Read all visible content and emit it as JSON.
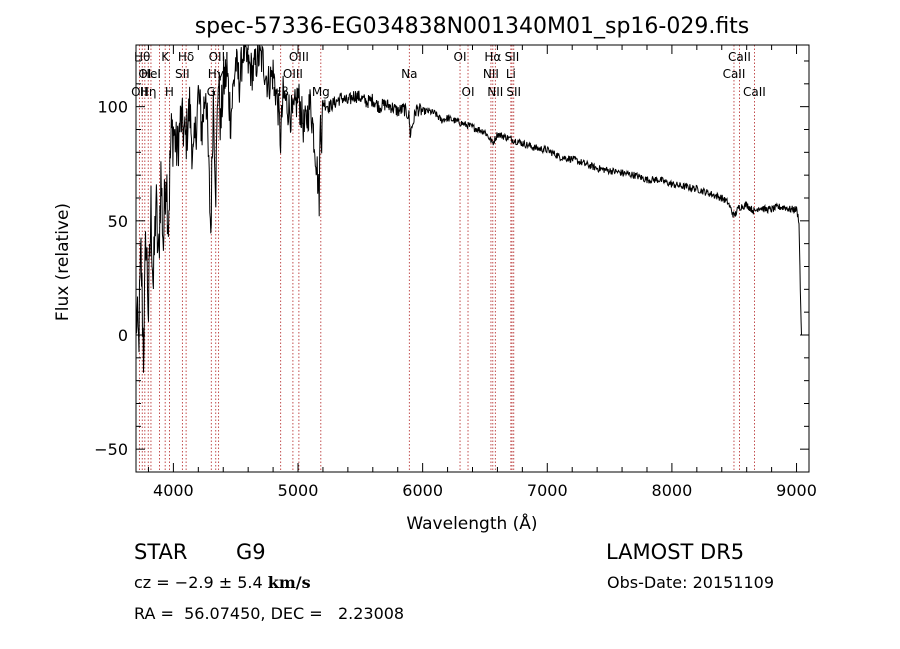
{
  "chart_data": {
    "type": "line",
    "title": "spec-57336-EG034838N001340M01_sp16-029.fits",
    "xlabel": "Wavelength (Å)",
    "ylabel": "Flux (relative)",
    "xlim": [
      3700,
      9100
    ],
    "ylim": [
      -60,
      127
    ],
    "xticks": [
      4000,
      5000,
      6000,
      7000,
      8000,
      9000
    ],
    "yticks": [
      -50,
      0,
      50,
      100
    ],
    "grid": false,
    "series": [
      {
        "x": [
          3700,
          3720,
          3740,
          3760,
          3780,
          3800,
          3820,
          3840,
          3860,
          3880,
          3900,
          3920,
          3940,
          3960,
          3980,
          4000,
          4030,
          4060,
          4100,
          4130,
          4160,
          4200,
          4230,
          4260,
          4300,
          4320,
          4340,
          4360,
          4380,
          4400,
          4430,
          4460,
          4500,
          4530,
          4560,
          4600,
          4640,
          4680,
          4720,
          4760,
          4800,
          4840,
          4860,
          4880,
          4920,
          4960,
          5000,
          5050,
          5100,
          5150,
          5170,
          5180,
          5190,
          5200,
          5250,
          5300,
          5350,
          5400,
          5450,
          5500,
          5550,
          5600,
          5650,
          5700,
          5750,
          5800,
          5850,
          5890,
          5900,
          5950,
          6000,
          6050,
          6100,
          6150,
          6200,
          6250,
          6300,
          6350,
          6400,
          6450,
          6500,
          6563,
          6600,
          6700,
          6800,
          6900,
          7000,
          7100,
          7200,
          7300,
          7400,
          7500,
          7600,
          7700,
          7800,
          7900,
          8000,
          8100,
          8200,
          8300,
          8400,
          8450,
          8498,
          8540,
          8600,
          8662,
          8700,
          8750,
          8800,
          8850,
          8900,
          8950,
          9000,
          9020,
          9030,
          9040
        ],
        "values": [
          10,
          -5,
          35,
          -8,
          45,
          10,
          55,
          20,
          60,
          30,
          70,
          40,
          75,
          50,
          85,
          90,
          80,
          95,
          85,
          100,
          75,
          105,
          90,
          110,
          45,
          105,
          65,
          115,
          90,
          110,
          115,
          95,
          120,
          110,
          125,
          118,
          115,
          122,
          120,
          110,
          115,
          100,
          85,
          105,
          100,
          95,
          105,
          90,
          102,
          75,
          60,
          98,
          85,
          102,
          100,
          102,
          104,
          102,
          105,
          104,
          102,
          103,
          100,
          101,
          100,
          98,
          99,
          96,
          88,
          99,
          98,
          98,
          97,
          94,
          95,
          94,
          93,
          92,
          91,
          90,
          89,
          84,
          88,
          86,
          84,
          82,
          81,
          78,
          77,
          75,
          73,
          72,
          71,
          70,
          68,
          68,
          66,
          65,
          64,
          62,
          60,
          58,
          52,
          56,
          57,
          54,
          56,
          55,
          55,
          56,
          56,
          55,
          55,
          50,
          20,
          0
        ],
        "color": "#000000"
      }
    ],
    "lines": [
      {
        "wavelength": 3727,
        "label": "OII",
        "row": 3
      },
      {
        "wavelength": 3750,
        "label": "Hθ",
        "row": 1
      },
      {
        "wavelength": 3771,
        "label": "OI",
        "row": 2
      },
      {
        "wavelength": 3798,
        "label": "Hη",
        "row": 3
      },
      {
        "wavelength": 3820,
        "label": "HeI",
        "row": 2
      },
      {
        "wavelength": 3889,
        "label": "",
        "row": 0
      },
      {
        "wavelength": 3934,
        "label": "K",
        "row": 1
      },
      {
        "wavelength": 3968,
        "label": "H",
        "row": 3
      },
      {
        "wavelength": 4072,
        "label": "SII",
        "row": 2
      },
      {
        "wavelength": 4102,
        "label": "Hδ",
        "row": 1
      },
      {
        "wavelength": 4304,
        "label": "G",
        "row": 3
      },
      {
        "wavelength": 4340,
        "label": "Hγ",
        "row": 2
      },
      {
        "wavelength": 4363,
        "label": "OIII",
        "row": 1
      },
      {
        "wavelength": 4861,
        "label": "Hβ",
        "row": 3
      },
      {
        "wavelength": 4959,
        "label": "OIII",
        "row": 2
      },
      {
        "wavelength": 5007,
        "label": "OIII",
        "row": 1
      },
      {
        "wavelength": 5183,
        "label": "Mg",
        "row": 3
      },
      {
        "wavelength": 5893,
        "label": "Na",
        "row": 2
      },
      {
        "wavelength": 6300,
        "label": "OI",
        "row": 1
      },
      {
        "wavelength": 6364,
        "label": "OI",
        "row": 3
      },
      {
        "wavelength": 6548,
        "label": "NII",
        "row": 2
      },
      {
        "wavelength": 6563,
        "label": "Hα",
        "row": 1
      },
      {
        "wavelength": 6583,
        "label": "NII",
        "row": 3
      },
      {
        "wavelength": 6708,
        "label": "Li",
        "row": 2
      },
      {
        "wavelength": 6717,
        "label": "SII",
        "row": 1
      },
      {
        "wavelength": 6731,
        "label": "SII",
        "row": 3
      },
      {
        "wavelength": 8498,
        "label": "CaII",
        "row": 2
      },
      {
        "wavelength": 8542,
        "label": "CaII",
        "row": 1
      },
      {
        "wavelength": 8662,
        "label": "CaII",
        "row": 3
      }
    ],
    "colors": {
      "line_marker": "#b22222",
      "spectrum": "#000000",
      "axis": "#000000"
    }
  },
  "info": {
    "class": "STAR",
    "subclass": "G9",
    "cz_prefix": "cz = ",
    "cz_value": "−2.9 ± 5.4",
    "cz_unit": "km/s",
    "radec": "RA =  56.07450, DEC =   2.23008",
    "survey": "LAMOST DR5",
    "obs_date": "Obs-Date: 20151109"
  }
}
